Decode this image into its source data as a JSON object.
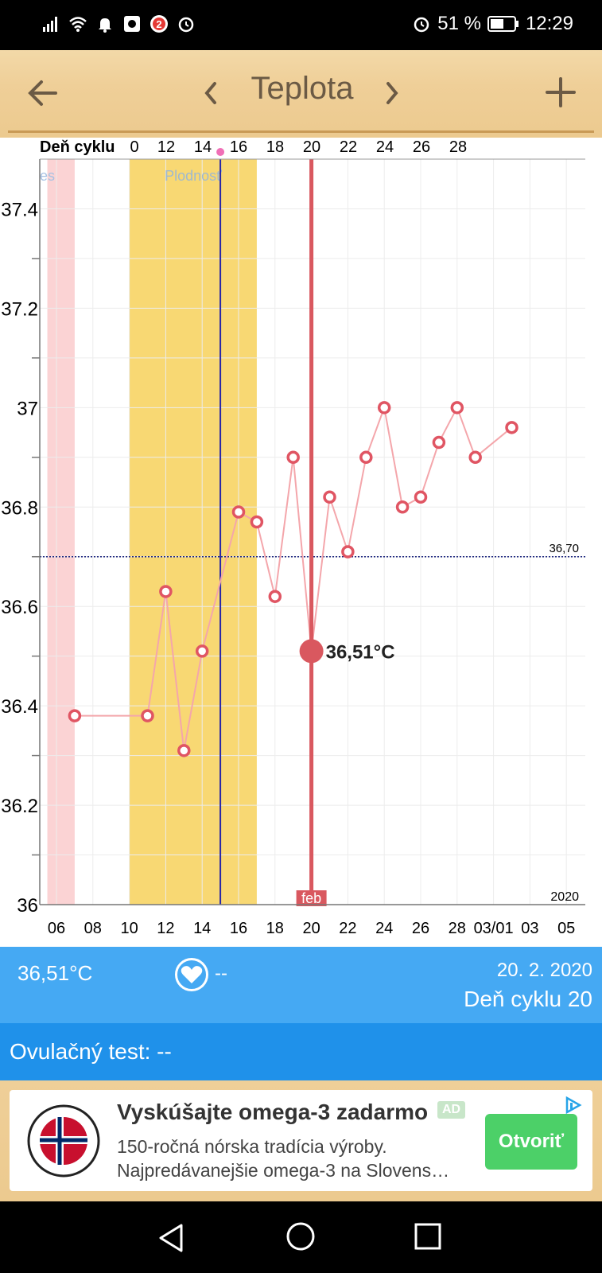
{
  "status_bar": {
    "left_icons": [
      "signal-icon",
      "wifi-icon",
      "bell-icon",
      "app-icon",
      "notification-count-icon",
      "alarm-icon"
    ],
    "notification_count": "2",
    "battery": "51 %",
    "time": "12:29"
  },
  "toolbar": {
    "title": "Teplota"
  },
  "chart": {
    "top_axis_label": "Deň cyklu",
    "cycle_ticks": [
      "0",
      "12",
      "14",
      "16",
      "18",
      "20",
      "22",
      "24",
      "26",
      "28"
    ],
    "fertility_label": "Plodnosť",
    "period_label": "es",
    "threshold_label": "36,70",
    "selected_label": "36,51°C",
    "month_label": "feb",
    "year_label": "2020"
  },
  "chart_data": {
    "type": "line",
    "x_unit": "day of month",
    "x_ticks": [
      "06",
      "08",
      "10",
      "12",
      "14",
      "16",
      "18",
      "20",
      "22",
      "24",
      "26",
      "28",
      "03/01",
      "03",
      "05"
    ],
    "ylim": [
      36,
      37.5
    ],
    "y_ticks": [
      "36",
      "36.2",
      "36.4",
      "36.6",
      "36.8",
      "37",
      "37.2",
      "37.4"
    ],
    "threshold": 36.7,
    "selected": {
      "day": 20,
      "value": 36.51
    },
    "points": [
      {
        "day": 7,
        "value": 36.38
      },
      {
        "day": 11,
        "value": 36.38
      },
      {
        "day": 12,
        "value": 36.63
      },
      {
        "day": 13,
        "value": 36.31
      },
      {
        "day": 14,
        "value": 36.51
      },
      {
        "day": 16,
        "value": 36.79
      },
      {
        "day": 17,
        "value": 36.77
      },
      {
        "day": 18,
        "value": 36.62
      },
      {
        "day": 19,
        "value": 36.9
      },
      {
        "day": 20,
        "value": 36.51
      },
      {
        "day": 21,
        "value": 36.82
      },
      {
        "day": 22,
        "value": 36.71
      },
      {
        "day": 23,
        "value": 36.9
      },
      {
        "day": 24,
        "value": 37.0
      },
      {
        "day": 25,
        "value": 36.8
      },
      {
        "day": 26,
        "value": 36.82
      },
      {
        "day": 27,
        "value": 36.93
      },
      {
        "day": 28,
        "value": 37.0
      },
      {
        "day": 29,
        "value": 36.9
      },
      {
        "day": 31,
        "value": 36.96
      }
    ],
    "bands": [
      {
        "kind": "period",
        "from": 5.5,
        "to": 7.0
      },
      {
        "kind": "fertility",
        "from": 10.0,
        "to": 17.0
      }
    ],
    "ovulation_line_day": 15
  },
  "info": {
    "temperature": "36,51°C",
    "mucus": "--",
    "date": "20. 2. 2020",
    "cycle_day": "Deň cyklu 20"
  },
  "ovulation_test": {
    "label": "Ovulačný test: --"
  },
  "ad": {
    "title": "Vyskúšajte omega-3 zadarmo",
    "tag": "AD",
    "line1": "150-ročná nórska tradícia výroby.",
    "line2": "Najpredávanejšie omega-3 na Slovens…",
    "button": "Otvoriť",
    "logo_text_top": "VYSOKÁ KVALITA",
    "logo_text_bottom": "VYROBENO V NORSKU"
  },
  "colors": {
    "point": "#e05563",
    "line": "#f4a6ab",
    "selection": "#d9585f",
    "fertility": "#f8d873",
    "period": "#fbd3d4",
    "info_bg": "#45a9f3",
    "ovul_bg": "#1f91ea"
  }
}
